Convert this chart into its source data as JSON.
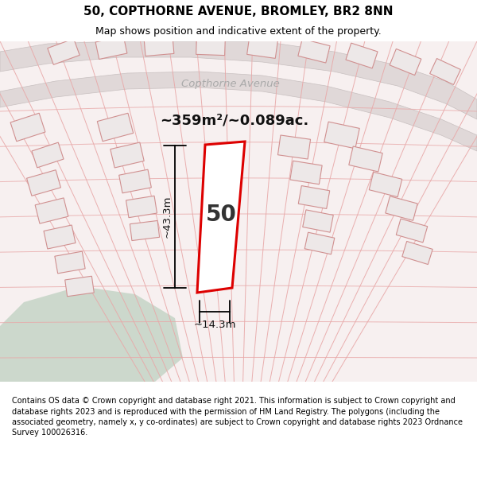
{
  "title_line1": "50, COPTHORNE AVENUE, BROMLEY, BR2 8NN",
  "title_line2": "Map shows position and indicative extent of the property.",
  "footer_text": "Contains OS data © Crown copyright and database right 2021. This information is subject to Crown copyright and database rights 2023 and is reproduced with the permission of HM Land Registry. The polygons (including the associated geometry, namely x, y co-ordinates) are subject to Crown copyright and database rights 2023 Ordnance Survey 100026316.",
  "area_label": "~359m²/~0.089ac.",
  "width_label": "~14.3m",
  "height_label": "~43.3m",
  "number_label": "50",
  "road_label": "Copthorne Avenue",
  "map_bg": "#f7f0f0",
  "road_fill": "#e0d8d8",
  "road_edge": "#c8c0c0",
  "green_fill": "#ccd8cc",
  "plot_line_color": "#dd0000",
  "plot_fill_color": "#ffffff",
  "boundary_line_color": "#e8a8a8",
  "building_fill": "#ede8e8",
  "building_edge": "#d09090",
  "footer_bg": "#dde8dd",
  "header_bg": "#ffffff",
  "title_fontsize": 11,
  "subtitle_fontsize": 9,
  "road_label_color": "#aaaaaa",
  "dim_color": "#111111"
}
